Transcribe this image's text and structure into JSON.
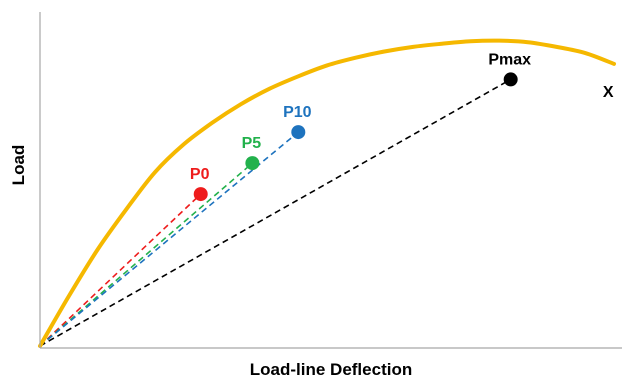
{
  "chart_data": {
    "type": "line",
    "xlabel": "Load-line Deflection",
    "ylabel": "Load",
    "xlim": [
      0,
      100
    ],
    "ylim": [
      0,
      100
    ],
    "grid": false,
    "curve": {
      "color": "#f5b800",
      "x": [
        0,
        5,
        10,
        15,
        20,
        25,
        30,
        35,
        40,
        45,
        50,
        55,
        60,
        65,
        70,
        75,
        80,
        85,
        90,
        95,
        100
      ],
      "y": [
        0,
        16,
        31,
        44,
        56,
        65,
        72,
        78,
        83,
        87,
        90.5,
        93,
        95,
        96.5,
        97.5,
        98.3,
        98.5,
        98,
        96.5,
        94.5,
        91
      ]
    },
    "points": [
      {
        "label": "P0",
        "x": 28,
        "y": 49,
        "color": "#ee1c1c"
      },
      {
        "label": "P5",
        "x": 37,
        "y": 59,
        "color": "#22b14c"
      },
      {
        "label": "P10",
        "x": 45,
        "y": 69,
        "color": "#1e73be"
      },
      {
        "label": "Pmax",
        "x": 82,
        "y": 86,
        "color": "#000000"
      }
    ],
    "end_marker": {
      "label": "X",
      "x": 99,
      "y": 82
    }
  }
}
